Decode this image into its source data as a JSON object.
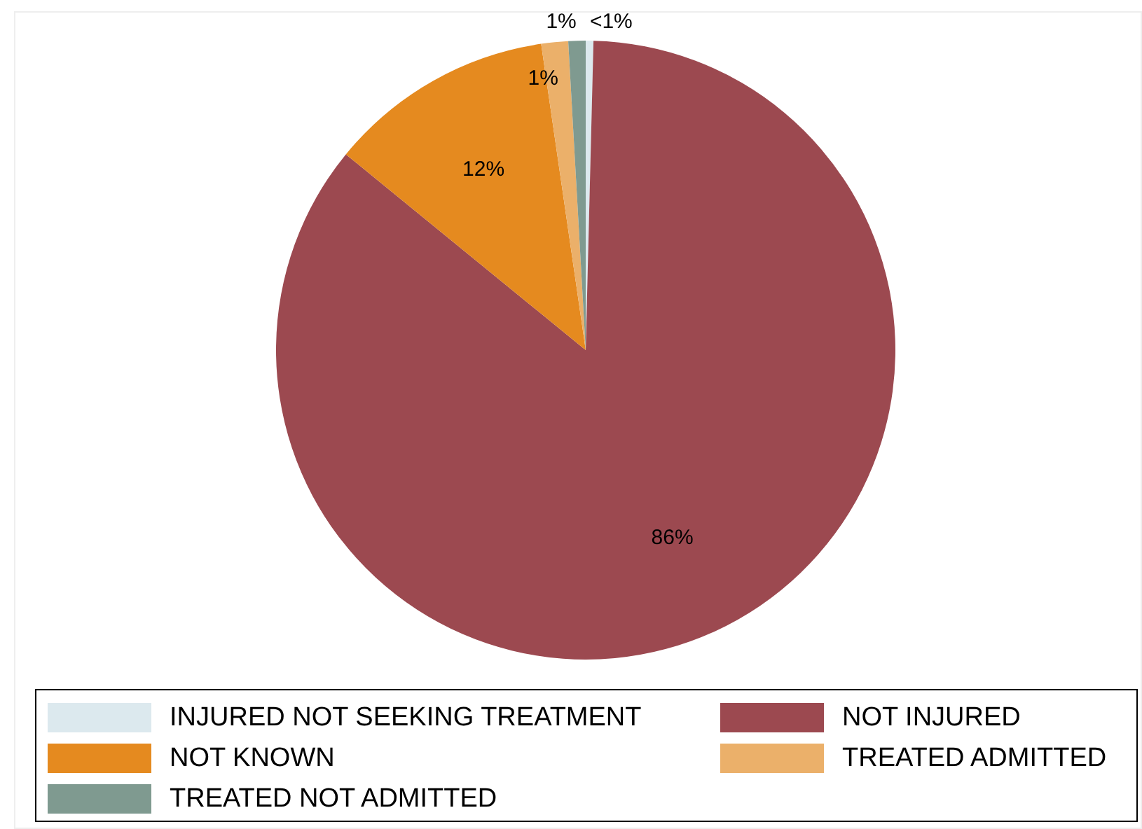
{
  "chart_data": {
    "type": "pie",
    "categories": [
      "INJURED NOT SEEKING TREATMENT",
      "NOT INJURED",
      "NOT KNOWN",
      "TREATED ADMITTED",
      "TREATED NOT ADMITTED"
    ],
    "values": [
      0.4,
      85.5,
      11.8,
      1.4,
      0.9
    ],
    "colors": [
      "#dce9ee",
      "#9c4950",
      "#e58a1f",
      "#ebb06a",
      "#7f9a90"
    ],
    "value_labels": [
      "<1%",
      "86%",
      "12%",
      "1%",
      "1%"
    ],
    "legend": "bottom"
  }
}
